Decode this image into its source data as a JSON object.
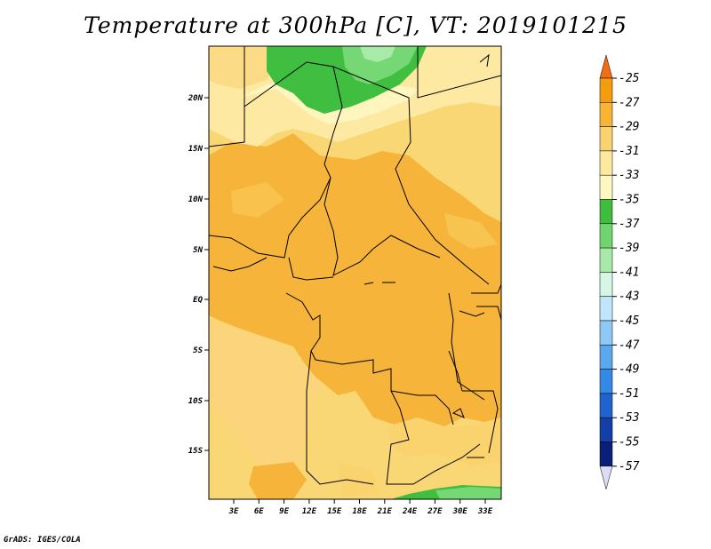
{
  "title": "Temperature at 300hPa [C], VT: 2019101215",
  "credit": "GrADS: IGES/COLA",
  "map": {
    "lat_labels": [
      "20N",
      "15N",
      "10N",
      "5N",
      "EQ",
      "5S",
      "10S",
      "15S"
    ],
    "lon_labels": [
      "3E",
      "6E",
      "9E",
      "12E",
      "15E",
      "18E",
      "21E",
      "24E",
      "27E",
      "30E",
      "33E"
    ]
  },
  "colorbar": {
    "labels": [
      "-25",
      "-27",
      "-29",
      "-31",
      "-33",
      "-35",
      "-37",
      "-39",
      "-41",
      "-43",
      "-45",
      "-47",
      "-49",
      "-51",
      "-53",
      "-55",
      "-57"
    ],
    "colors": [
      "#f26d14",
      "#f59c0e",
      "#f7b533",
      "#fad26e",
      "#fde99e",
      "#fff7c0",
      "#3dbe3d",
      "#6fd66f",
      "#a7eaa7",
      "#d7f7e6",
      "#bfe6fb",
      "#90c8f5",
      "#5aa8ee",
      "#3489e6",
      "#1f63cf",
      "#1340a6",
      "#0b1e7a",
      "#dcdcf5"
    ]
  }
}
